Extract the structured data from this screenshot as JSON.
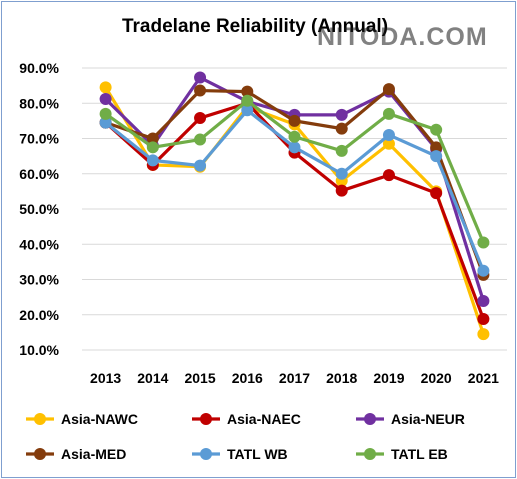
{
  "chart_data": {
    "type": "line",
    "title": "Tradelane Reliability (Annual)",
    "watermark": "NITODA.COM",
    "xlabel": "",
    "ylabel": "",
    "categories": [
      "2013",
      "2014",
      "2015",
      "2016",
      "2017",
      "2018",
      "2019",
      "2020",
      "2021"
    ],
    "ylim": [
      10,
      90
    ],
    "yticks": [
      "10.0%",
      "20.0%",
      "30.0%",
      "40.0%",
      "50.0%",
      "60.0%",
      "70.0%",
      "80.0%",
      "90.0%"
    ],
    "grid": true,
    "legend_position": "bottom",
    "series": [
      {
        "name": "Asia-NAWC",
        "color": "#ffc000",
        "values": [
          84.5,
          62.5,
          62.0,
          79.0,
          74.0,
          58.0,
          68.5,
          55.0,
          14.5
        ]
      },
      {
        "name": "Asia-NAEC",
        "color": "#c00000",
        "values": [
          74.5,
          62.5,
          75.8,
          80.0,
          66.0,
          55.2,
          59.6,
          54.5,
          18.8
        ]
      },
      {
        "name": "Asia-NEUR",
        "color": "#7030a0",
        "values": [
          81.2,
          68.0,
          87.3,
          80.5,
          76.7,
          76.7,
          83.3,
          67.0,
          23.9
        ]
      },
      {
        "name": "Asia-MED",
        "color": "#843c0c",
        "values": [
          74.5,
          70.0,
          83.6,
          83.3,
          75.0,
          72.8,
          84.0,
          67.5,
          31.3
        ]
      },
      {
        "name": "TATL WB",
        "color": "#5b9bd5",
        "values": [
          74.5,
          63.8,
          62.3,
          78.0,
          67.5,
          60.0,
          71.0,
          65.0,
          32.5
        ]
      },
      {
        "name": "TATL EB",
        "color": "#70ad47",
        "values": [
          77.0,
          67.5,
          69.7,
          80.7,
          70.5,
          66.5,
          77.0,
          72.5,
          40.5
        ]
      }
    ]
  }
}
